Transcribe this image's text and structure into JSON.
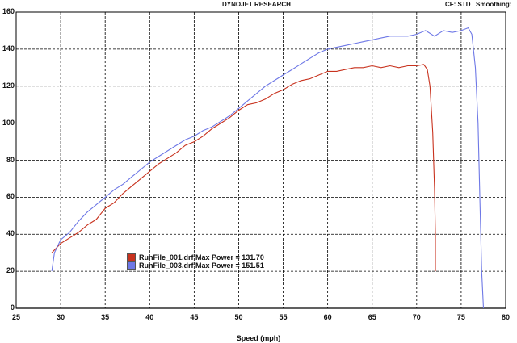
{
  "header": {
    "title": "DYNOJET RESEARCH",
    "cf": "CF: STD",
    "smoothing": "Smoothing:"
  },
  "colors": {
    "series1": "#c8321e",
    "series2": "#6e78e6",
    "grid": "#000000"
  },
  "chart_data": {
    "type": "line",
    "xlabel": "Speed (mph)",
    "ylabel": "",
    "xlim": [
      25,
      80
    ],
    "ylim": [
      0,
      160
    ],
    "xticks": [
      25,
      30,
      35,
      40,
      45,
      50,
      55,
      60,
      65,
      70,
      75,
      80
    ],
    "yticks": [
      0,
      20,
      40,
      60,
      80,
      100,
      120,
      140,
      160
    ],
    "grid": true,
    "legend_position": "lower-left",
    "series": [
      {
        "name": "RunFile_001.drf Max Power = 131.70",
        "color": "#c8321e",
        "points": [
          [
            29.0,
            30
          ],
          [
            30.0,
            35
          ],
          [
            31.0,
            38
          ],
          [
            32.0,
            41
          ],
          [
            33.0,
            45
          ],
          [
            34.0,
            48
          ],
          [
            35.0,
            54
          ],
          [
            36.0,
            57
          ],
          [
            37.0,
            62
          ],
          [
            38.0,
            66
          ],
          [
            39.0,
            70
          ],
          [
            40.0,
            74
          ],
          [
            41.0,
            78
          ],
          [
            42.0,
            81
          ],
          [
            43.0,
            84
          ],
          [
            44.0,
            88
          ],
          [
            45.0,
            90
          ],
          [
            46.0,
            93
          ],
          [
            47.0,
            97
          ],
          [
            48.0,
            100
          ],
          [
            49.0,
            103
          ],
          [
            50.0,
            107
          ],
          [
            51.0,
            110
          ],
          [
            52.0,
            111
          ],
          [
            53.0,
            113
          ],
          [
            54.0,
            116
          ],
          [
            55.0,
            118
          ],
          [
            56.0,
            121
          ],
          [
            57.0,
            123
          ],
          [
            58.0,
            124
          ],
          [
            59.0,
            126
          ],
          [
            60.0,
            128
          ],
          [
            61.0,
            128
          ],
          [
            62.0,
            129
          ],
          [
            63.0,
            130
          ],
          [
            64.0,
            130
          ],
          [
            65.0,
            131
          ],
          [
            66.0,
            130
          ],
          [
            67.0,
            131
          ],
          [
            68.0,
            130
          ],
          [
            69.0,
            131
          ],
          [
            70.0,
            131
          ],
          [
            70.8,
            131.7
          ],
          [
            71.2,
            129
          ],
          [
            71.5,
            120
          ],
          [
            71.8,
            95
          ],
          [
            72.0,
            65
          ],
          [
            72.1,
            40
          ],
          [
            72.1,
            20
          ]
        ]
      },
      {
        "name": "RunFile_003.drf Max Power = 151.51",
        "color": "#6e78e6",
        "points": [
          [
            29.0,
            20
          ],
          [
            29.3,
            30
          ],
          [
            30.0,
            37
          ],
          [
            31.0,
            41
          ],
          [
            32.0,
            47
          ],
          [
            33.0,
            52
          ],
          [
            34.0,
            56
          ],
          [
            35.0,
            60
          ],
          [
            36.0,
            64
          ],
          [
            37.0,
            67
          ],
          [
            38.0,
            71
          ],
          [
            39.0,
            75
          ],
          [
            40.0,
            79
          ],
          [
            41.0,
            82
          ],
          [
            42.0,
            85
          ],
          [
            43.0,
            88
          ],
          [
            44.0,
            91
          ],
          [
            45.0,
            93
          ],
          [
            46.0,
            96
          ],
          [
            47.0,
            98
          ],
          [
            48.0,
            101
          ],
          [
            49.0,
            104
          ],
          [
            50.0,
            108
          ],
          [
            51.0,
            112
          ],
          [
            52.0,
            116
          ],
          [
            53.0,
            120
          ],
          [
            54.0,
            123
          ],
          [
            55.0,
            126
          ],
          [
            56.0,
            129
          ],
          [
            57.0,
            132
          ],
          [
            58.0,
            135
          ],
          [
            59.0,
            138
          ],
          [
            60.0,
            140
          ],
          [
            61.0,
            141
          ],
          [
            62.0,
            142
          ],
          [
            63.0,
            143
          ],
          [
            64.0,
            144
          ],
          [
            65.0,
            145
          ],
          [
            66.0,
            146
          ],
          [
            67.0,
            147
          ],
          [
            68.0,
            147
          ],
          [
            69.0,
            147
          ],
          [
            70.0,
            148
          ],
          [
            71.0,
            150
          ],
          [
            72.0,
            147
          ],
          [
            73.0,
            150
          ],
          [
            74.0,
            149
          ],
          [
            75.0,
            150
          ],
          [
            75.8,
            151.5
          ],
          [
            76.2,
            148
          ],
          [
            76.6,
            130
          ],
          [
            76.9,
            100
          ],
          [
            77.1,
            60
          ],
          [
            77.3,
            20
          ],
          [
            77.5,
            0
          ]
        ]
      }
    ]
  }
}
